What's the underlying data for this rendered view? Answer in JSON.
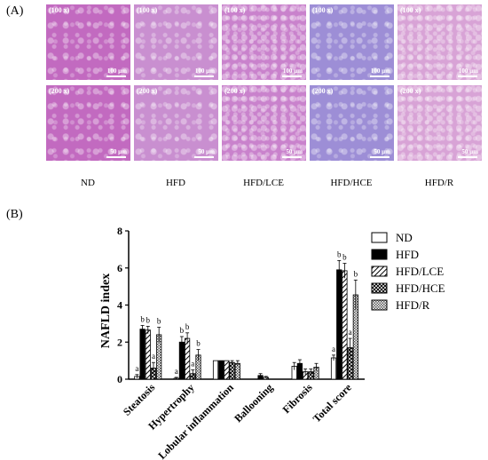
{
  "panel_a": {
    "label": "(A)",
    "rows": [
      {
        "mag": "(100 x)",
        "scale": "100 µm"
      },
      {
        "mag": "(200 x)",
        "scale": "50 µm"
      }
    ],
    "groups": [
      "ND",
      "HFD",
      "HFD/LCE",
      "HFD/HCE",
      "HFD/R"
    ],
    "tile_colors": [
      "#c26ac0",
      "#c98fd0",
      "#c982cc",
      "#9d8ed6",
      "#d8a3d6"
    ]
  },
  "panel_b": {
    "label": "(B)"
  },
  "chart_data": {
    "type": "bar",
    "ylabel": "NAFLD index",
    "ylim": [
      0,
      8
    ],
    "yticks": [
      0,
      2,
      4,
      6,
      8
    ],
    "categories": [
      "Steatosis",
      "Hypertrophy",
      "Lobular inflammation",
      "Ballooning",
      "Fibrosis",
      "Total score"
    ],
    "series": [
      {
        "name": "ND",
        "pattern": "white",
        "values": [
          0.15,
          0.05,
          1.0,
          0.0,
          0.7,
          1.15
        ],
        "errors": [
          0.1,
          0.05,
          0.0,
          0.0,
          0.2,
          0.15
        ]
      },
      {
        "name": "HFD",
        "pattern": "black",
        "values": [
          2.7,
          2.0,
          1.0,
          0.2,
          0.85,
          5.9
        ],
        "errors": [
          0.2,
          0.3,
          0.0,
          0.1,
          0.2,
          0.5
        ]
      },
      {
        "name": "HFD/LCE",
        "pattern": "diagonal",
        "values": [
          2.65,
          2.2,
          1.0,
          0.1,
          0.4,
          5.85
        ],
        "errors": [
          0.2,
          0.3,
          0.0,
          0.05,
          0.15,
          0.4
        ]
      },
      {
        "name": "HFD/HCE",
        "pattern": "cross",
        "values": [
          0.6,
          0.3,
          0.9,
          0.0,
          0.4,
          1.7
        ],
        "errors": [
          0.3,
          0.2,
          0.1,
          0.0,
          0.15,
          0.5
        ]
      },
      {
        "name": "HFD/R",
        "pattern": "dots",
        "values": [
          2.4,
          1.3,
          0.85,
          0.0,
          0.65,
          4.55
        ],
        "errors": [
          0.4,
          0.3,
          0.15,
          0.0,
          0.2,
          0.8
        ]
      }
    ],
    "significance": [
      [
        "a",
        "b",
        "b",
        "a",
        "b"
      ],
      [
        "a",
        "b",
        "b",
        "a",
        "b"
      ],
      [
        "",
        "",
        "",
        "",
        ""
      ],
      [
        "",
        "",
        "",
        "",
        ""
      ],
      [
        "",
        "",
        "",
        "",
        ""
      ],
      [
        "a",
        "b",
        "b",
        "a",
        "b"
      ]
    ],
    "legend_position": "right"
  }
}
